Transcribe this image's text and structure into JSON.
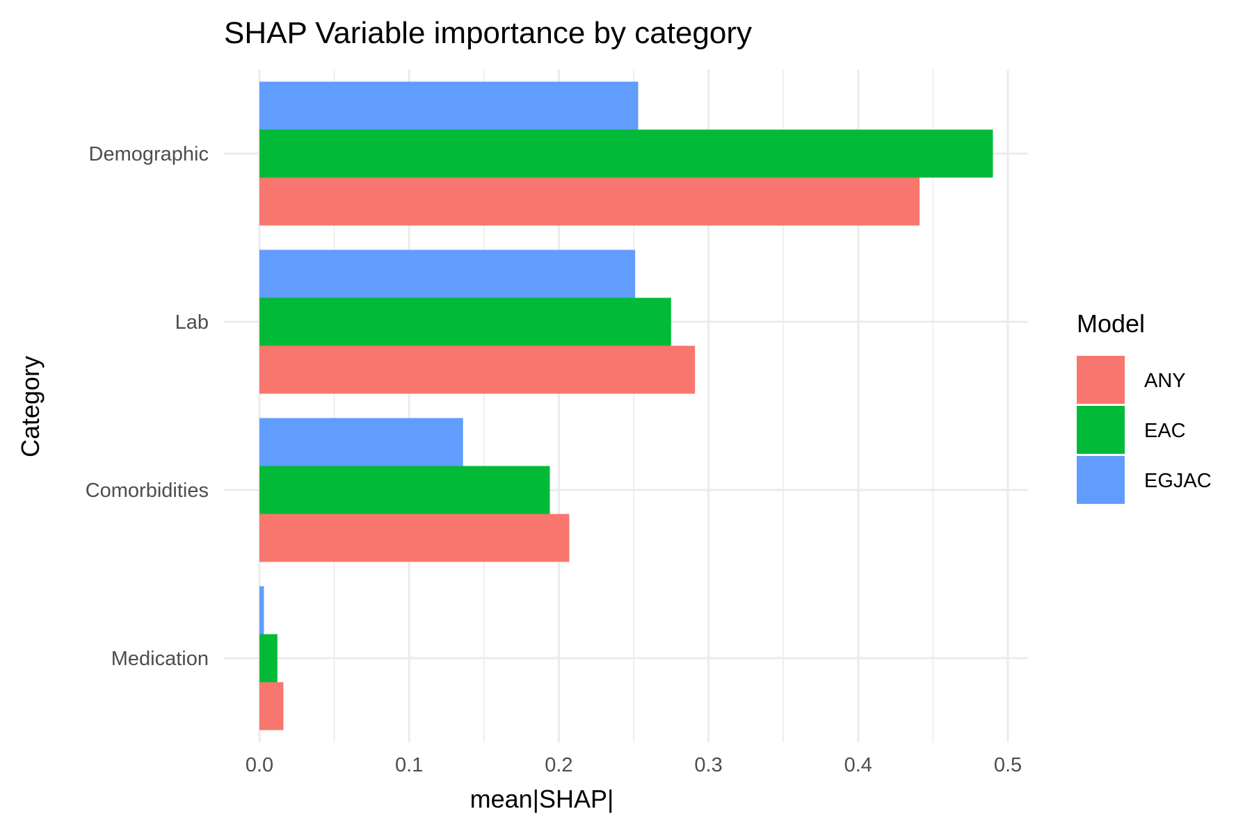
{
  "chart_data": {
    "type": "bar",
    "orientation": "horizontal",
    "title": "SHAP Variable importance by category",
    "xlabel": "mean|SHAP|",
    "ylabel": "Category",
    "xlim": [
      0,
      0.5
    ],
    "x_ticks": [
      "0.0",
      "0.1",
      "0.2",
      "0.3",
      "0.4",
      "0.5"
    ],
    "categories": [
      "Demographic",
      "Lab",
      "Comorbidities",
      "Medication"
    ],
    "series": [
      {
        "name": "ANY",
        "color": "#F8766D",
        "values": [
          0.441,
          0.291,
          0.207,
          0.016
        ]
      },
      {
        "name": "EAC",
        "color": "#00BA38",
        "values": [
          0.49,
          0.275,
          0.194,
          0.012
        ]
      },
      {
        "name": "EGJAC",
        "color": "#619CFF",
        "values": [
          0.253,
          0.251,
          0.136,
          0.003
        ]
      }
    ],
    "grid": true,
    "legend": {
      "title": "Model",
      "placement": "right"
    }
  }
}
